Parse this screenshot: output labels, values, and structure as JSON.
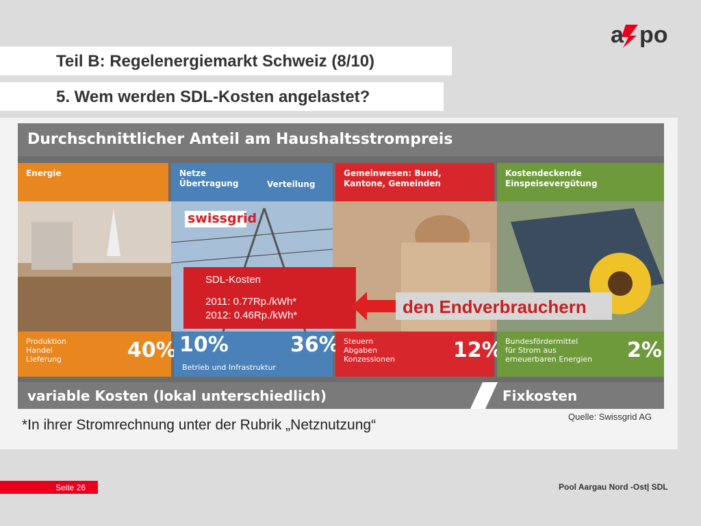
{
  "header": {
    "logo_text": "axpo",
    "title": "Teil B:  Regelenergiemarkt Schweiz (8/10)",
    "subtitle": "5. Wem werden SDL-Kosten angelastet?"
  },
  "infographic": {
    "top_bar": "Durchschnittlicher Anteil am Haushaltsstrompreis",
    "columns": [
      {
        "head": "Energie",
        "head2": "",
        "label": "Produktion\nHandel\nLieferung",
        "percent": "40%",
        "color": "#e8861f"
      },
      {
        "head": "Netze\nÜbertragung",
        "head2": "Verteilung",
        "label": "Betrieb  und Infrastruktur",
        "percent": "10%",
        "percent2": "36%",
        "color": "#4a81b8"
      },
      {
        "head": "Gemeinwesen: Bund,\nKantone, Gemeinden",
        "head2": "",
        "label": "Steuern\nAbgaben\nKonzessionen",
        "percent": "12%",
        "color": "#d8272c"
      },
      {
        "head": "Kostendeckende\nEinspeisevergütung",
        "head2": "",
        "label": "Bundesfördermittel\nfür Strom aus\nerneuerbaren Energien",
        "percent": "2%",
        "color": "#6e9a3b"
      }
    ],
    "logo_swissgrid": "swissgrid",
    "bottom_left": "variable Kosten (lokal unterschiedlich)",
    "bottom_right": "Fixkosten"
  },
  "sdl_box": {
    "title": "SDL-Kosten",
    "line1": "2011: 0.77Rp./kWh*",
    "line2": "2012: 0.46Rp./kWh*"
  },
  "callout": "den Endverbrauchern",
  "source": "Quelle: Swissgrid AG",
  "footnote": "*In ihrer Stromrechnung unter der Rubrik „Netznutzung“",
  "footer": {
    "page": "Seite 26",
    "right": "Pool Aargau Nord -Ost| SDL"
  },
  "colors": {
    "accent_red": "#e8001c",
    "title_red": "#c62020"
  }
}
